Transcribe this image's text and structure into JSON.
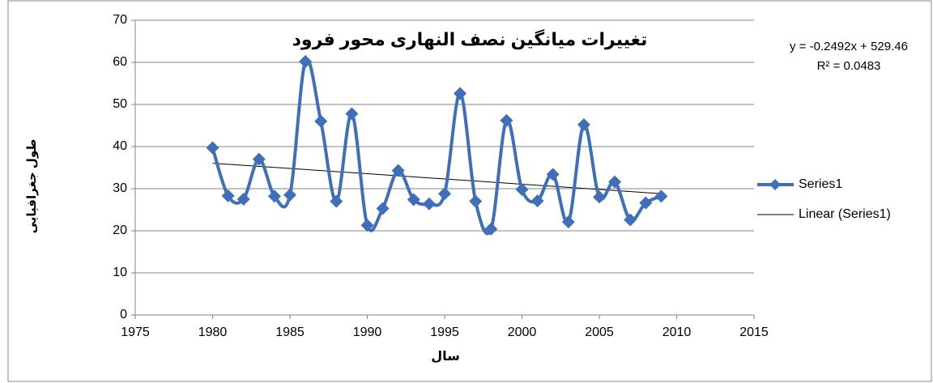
{
  "chart_data": {
    "type": "scatter",
    "title": "تغییرات میانگین نصف النهاری محور فرود",
    "xlabel": "سال",
    "ylabel": "طول جغرافیایی",
    "x": [
      1980,
      1981,
      1982,
      1983,
      1984,
      1985,
      1986,
      1987,
      1988,
      1989,
      1990,
      1991,
      1992,
      1993,
      1994,
      1995,
      1996,
      1997,
      1998,
      1999,
      2000,
      2001,
      2002,
      2003,
      2004,
      2005,
      2006,
      2007,
      2008,
      2009
    ],
    "series": [
      {
        "name": "Series1",
        "color": "#3f6fb8",
        "values": [
          39.7,
          28.3,
          27.5,
          37,
          28.2,
          28.5,
          60.2,
          46,
          27,
          47.8,
          21.3,
          25.3,
          34.3,
          27.4,
          26.4,
          28.8,
          52.6,
          27,
          20.4,
          46.2,
          29.8,
          27.1,
          33.4,
          22.1,
          45.2,
          28,
          31.6,
          22.6,
          26.6,
          28.2
        ]
      }
    ],
    "trendline": {
      "name": "Linear (Series1)",
      "color": "#000000",
      "slope": -0.2492,
      "intercept": 529.46,
      "equation": "y = -0.2492x + 529.46",
      "r2": "R² = 0.0483"
    },
    "xlim": [
      1975,
      2015
    ],
    "xticks": [
      1975,
      1980,
      1985,
      1990,
      1995,
      2000,
      2005,
      2010,
      2015
    ],
    "ylim": [
      0,
      70
    ],
    "yticks": [
      0,
      10,
      20,
      30,
      40,
      50,
      60,
      70
    ],
    "grid": true
  }
}
